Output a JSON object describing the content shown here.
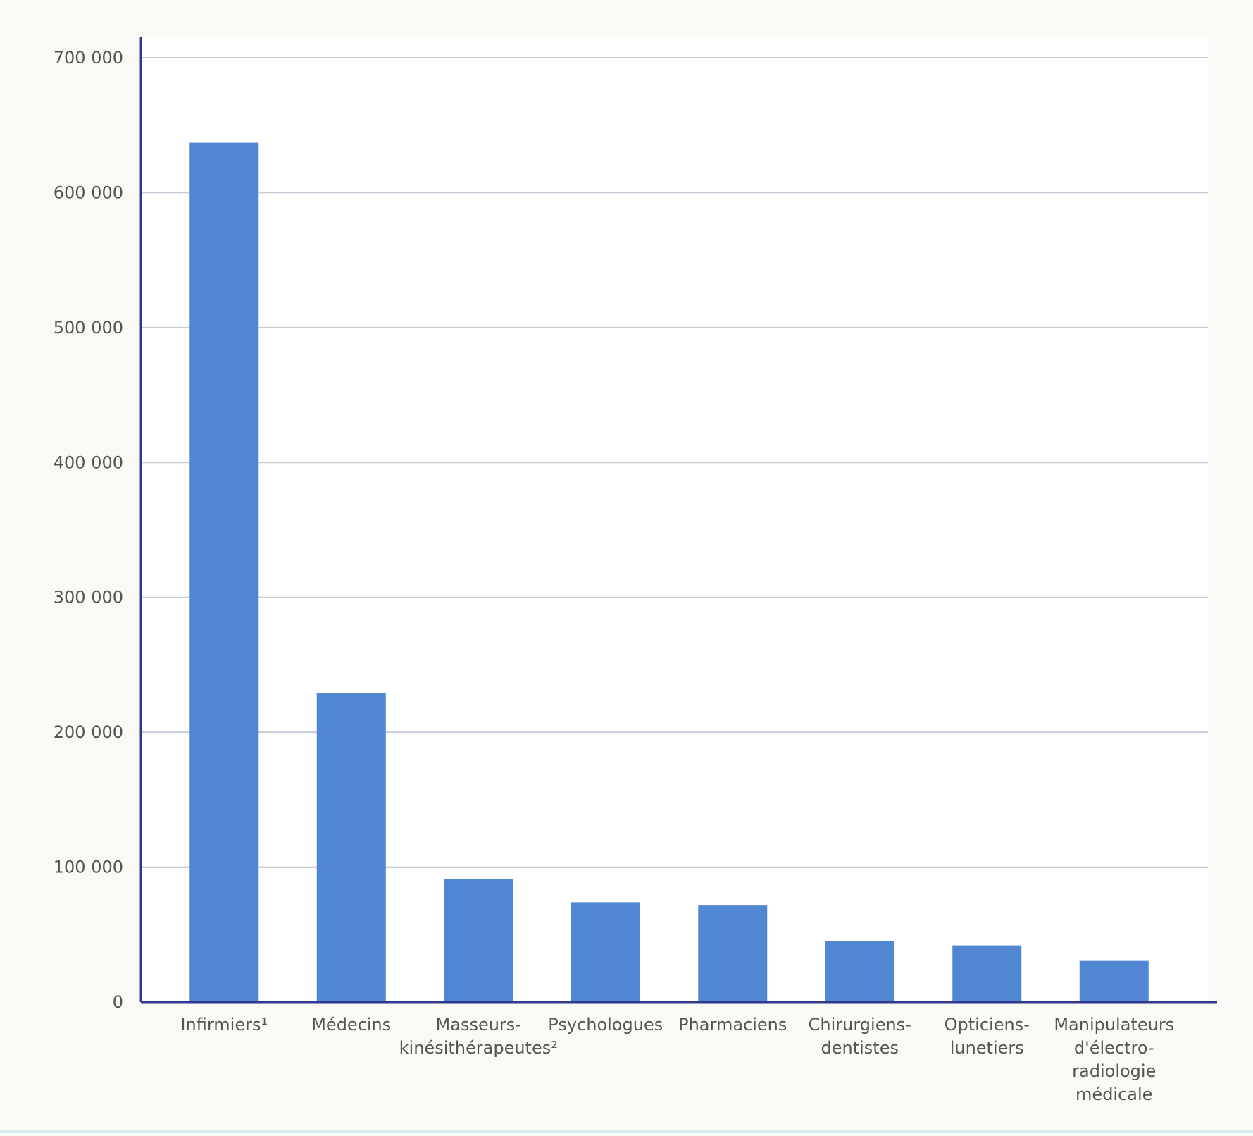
{
  "chart_data": {
    "type": "bar",
    "title": "",
    "xlabel": "",
    "ylabel": "",
    "ylim": [
      0,
      700000
    ],
    "yticks": [
      0,
      100000,
      200000,
      300000,
      400000,
      500000,
      600000,
      700000
    ],
    "ytick_labels": [
      "0",
      "100 000",
      "200 000",
      "300 000",
      "400 000",
      "500 000",
      "600 000",
      "700 000"
    ],
    "grid": true,
    "legend": "none",
    "categories": [
      "Infirmiers¹",
      "Médecins",
      "Masseurs-kinésithérapeutes²",
      "Psychologues",
      "Pharmaciens",
      "Chirurgiens-dentistes",
      "Opticiens-lunetiers",
      "Manipulateurs d'électro-radiologie médicale"
    ],
    "category_lines": [
      [
        "Infirmiers¹"
      ],
      [
        "Médecins"
      ],
      [
        "Masseurs-",
        "kinésithérapeutes²"
      ],
      [
        "Psychologues"
      ],
      [
        "Pharmaciens"
      ],
      [
        "Chirurgiens-",
        "dentistes"
      ],
      [
        "Opticiens-",
        "lunetiers"
      ],
      [
        "Manipulateurs",
        "d'électro-",
        "radiologie",
        "médicale"
      ]
    ],
    "values": [
      637000,
      229000,
      91000,
      74000,
      72000,
      45000,
      42000,
      31000
    ],
    "colors": {
      "bar": "#5186d2",
      "axis": "#2f3a8f",
      "grid": "#c9cbd6",
      "text": "#555555",
      "background": "#f9f9f6",
      "plot_background": "#ffffff"
    }
  }
}
